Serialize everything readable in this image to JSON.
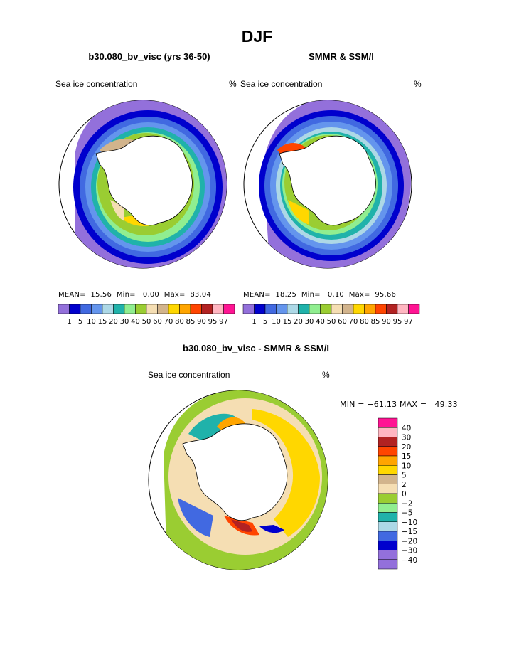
{
  "header": {
    "title": "DJF"
  },
  "panels": [
    {
      "subtitle": "b30.080_bv_visc (yrs 36-50)",
      "left_label": "Sea ice concentration",
      "right_label": "%",
      "stats": {
        "mean_label": "MEAN=",
        "mean": "15.56",
        "min_label": "Min=",
        "min": "0.00",
        "max_label": "Max=",
        "max": "83.04"
      }
    },
    {
      "subtitle": "SMMR & SSM/I",
      "left_label": "Sea ice concentration",
      "right_label": "%",
      "stats": {
        "mean_label": "MEAN=",
        "mean": "18.25",
        "min_label": "Min=",
        "min": "0.10",
        "max_label": "Max=",
        "max": "95.66"
      }
    }
  ],
  "concentration_scale": {
    "labels": [
      "1",
      "5",
      "10",
      "15",
      "20",
      "30",
      "40",
      "50",
      "60",
      "70",
      "80",
      "85",
      "90",
      "95",
      "97"
    ],
    "colors": [
      "#9370db",
      "#0000cd",
      "#4169e1",
      "#6495ed",
      "#add8e6",
      "#20b2aa",
      "#90ee90",
      "#9acd32",
      "#f5deb3",
      "#d2b48c",
      "#ffd700",
      "#ffa500",
      "#ff4500",
      "#b22222",
      "#ffb6c1",
      "#ff1493"
    ]
  },
  "difference_panel": {
    "subtitle": "b30.080_bv_visc - SMMR & SSM/I",
    "left_label": "Sea ice concentration",
    "right_label": "%",
    "minmax": {
      "min_label": "MIN =",
      "min": "−61.13",
      "max_label": "MAX =",
      "max": "49.33"
    }
  },
  "difference_scale": {
    "labels": [
      "40",
      "30",
      "20",
      "15",
      "10",
      "5",
      "2",
      "0",
      "−2",
      "−5",
      "−10",
      "−15",
      "−20",
      "−30",
      "−40"
    ],
    "colors": [
      "#ff1493",
      "#ffb6c1",
      "#b22222",
      "#ff4500",
      "#ffa500",
      "#ffd700",
      "#d2b48c",
      "#f5deb3",
      "#9acd32",
      "#90ee90",
      "#20b2aa",
      "#add8e6",
      "#4169e1",
      "#0000cd",
      "#9370db"
    ]
  }
}
